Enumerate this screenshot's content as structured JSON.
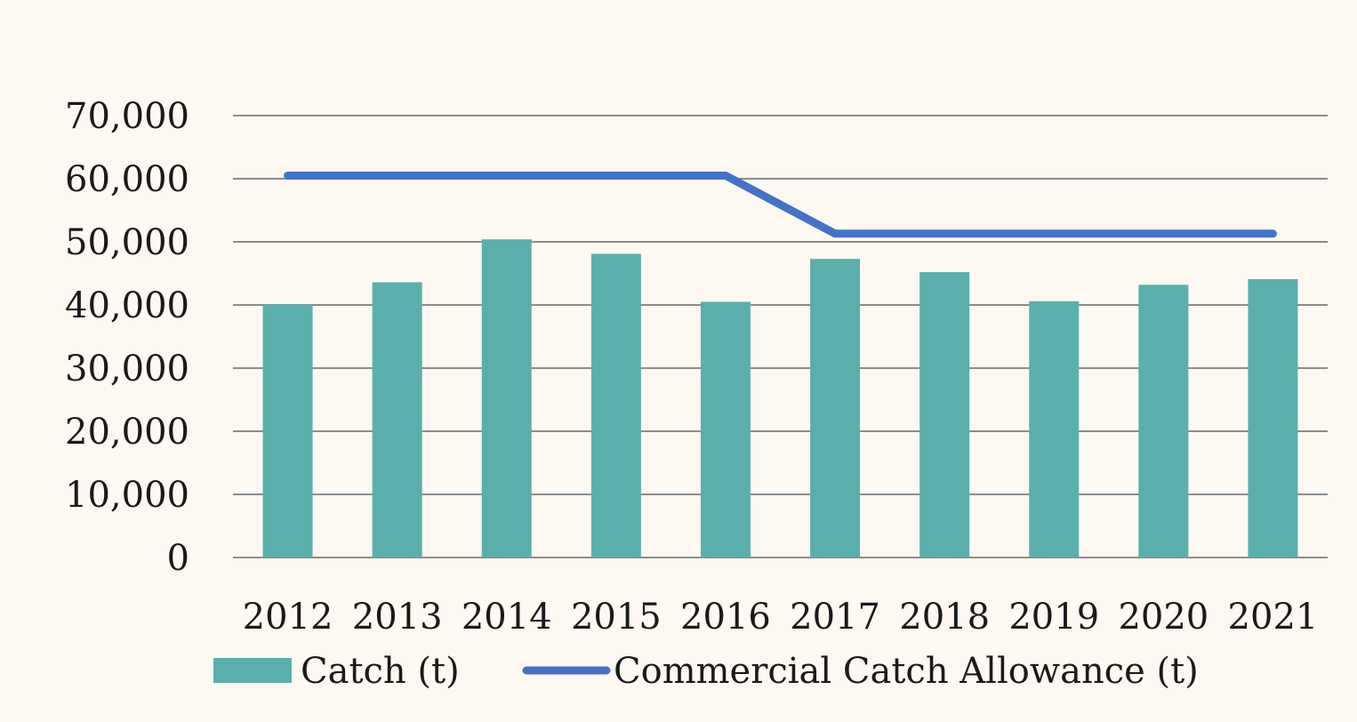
{
  "chart_data": {
    "type": "bar",
    "title": "",
    "xlabel": "",
    "ylabel": "",
    "categories": [
      "2012",
      "2013",
      "2014",
      "2015",
      "2016",
      "2017",
      "2018",
      "2019",
      "2020",
      "2021"
    ],
    "ylim": [
      0,
      70000
    ],
    "y_ticks": [
      0,
      10000,
      20000,
      30000,
      40000,
      50000,
      60000,
      70000
    ],
    "y_tick_labels": [
      "0",
      "10,000",
      "20,000",
      "30,000",
      "40,000",
      "50,000",
      "60,000",
      "70,000"
    ],
    "grid": true,
    "legend_position": "bottom",
    "series": [
      {
        "name": "Catch (t)",
        "type": "bar",
        "color": "#5aafad",
        "values": [
          40100,
          43600,
          50400,
          48100,
          40500,
          47300,
          45200,
          40600,
          43200,
          44100
        ]
      },
      {
        "name": "Commercial Catch Allowance (t)",
        "type": "line",
        "color": "#4472c4",
        "values": [
          60500,
          60500,
          60500,
          60500,
          60500,
          51300,
          51300,
          51300,
          51300,
          51300
        ]
      }
    ]
  }
}
